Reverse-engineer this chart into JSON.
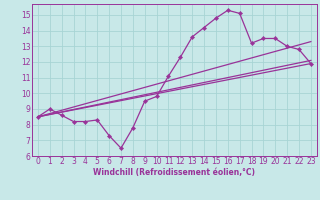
{
  "xlabel": "Windchill (Refroidissement éolien,°C)",
  "background_color": "#c8e8e8",
  "line_color": "#993399",
  "grid_color": "#a8d4d4",
  "xlim": [
    -0.5,
    23.5
  ],
  "ylim": [
    6,
    15.7
  ],
  "yticks": [
    6,
    7,
    8,
    9,
    10,
    11,
    12,
    13,
    14,
    15
  ],
  "xticks": [
    0,
    1,
    2,
    3,
    4,
    5,
    6,
    7,
    8,
    9,
    10,
    11,
    12,
    13,
    14,
    15,
    16,
    17,
    18,
    19,
    20,
    21,
    22,
    23
  ],
  "curve_x": [
    0,
    1,
    2,
    3,
    4,
    5,
    6,
    7,
    8,
    9,
    10,
    11,
    12,
    13,
    14,
    15,
    16,
    17,
    18,
    19,
    20,
    21,
    22,
    23
  ],
  "curve_y": [
    8.5,
    9.0,
    8.6,
    8.2,
    8.2,
    8.3,
    7.3,
    6.5,
    7.8,
    9.5,
    9.8,
    11.1,
    12.3,
    13.6,
    14.2,
    14.8,
    15.3,
    15.1,
    13.2,
    13.5,
    13.5,
    13.0,
    12.8,
    11.9
  ],
  "line1_x": [
    0,
    23
  ],
  "line1_y": [
    8.5,
    11.9
  ],
  "line2_x": [
    0,
    23
  ],
  "line2_y": [
    8.5,
    13.3
  ],
  "line3_x": [
    0,
    23
  ],
  "line3_y": [
    8.5,
    12.1
  ],
  "marker": "D",
  "markersize": 2.2,
  "linewidth": 0.9,
  "tick_fontsize": 5.5,
  "xlabel_fontsize": 5.5
}
